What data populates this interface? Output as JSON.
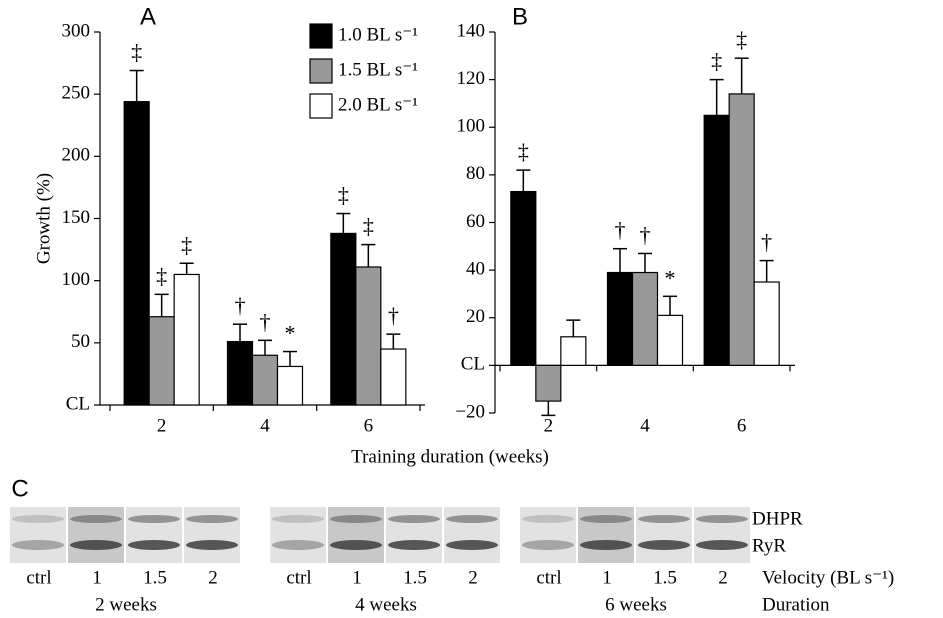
{
  "chart_data": [
    {
      "type": "bar",
      "label": "A",
      "ylabel": "Growth (%)",
      "xlabel": "Training duration (weeks)",
      "categories": [
        "2",
        "4",
        "6"
      ],
      "ylim": [
        0,
        300
      ],
      "yticks": [
        {
          "value": 0,
          "label": "CL"
        },
        50,
        100,
        150,
        200,
        250,
        300
      ],
      "legend": "upper right",
      "series": [
        {
          "name": "1.0 BL s⁻¹",
          "color": "#000000",
          "values": [
            244,
            51,
            138
          ],
          "errors": [
            25,
            14,
            16
          ],
          "markers": [
            "‡",
            "†",
            "‡"
          ]
        },
        {
          "name": "1.5 BL s⁻¹",
          "color": "#999999",
          "values": [
            71,
            40,
            111
          ],
          "errors": [
            18,
            12,
            18
          ],
          "markers": [
            "‡",
            "†",
            "‡"
          ]
        },
        {
          "name": "2.0 BL s⁻¹",
          "color": "#ffffff",
          "values": [
            105,
            31,
            45
          ],
          "errors": [
            9,
            12,
            12
          ],
          "markers": [
            "‡",
            "*",
            "†"
          ]
        }
      ]
    },
    {
      "type": "bar",
      "label": "B",
      "categories": [
        "2",
        "4",
        "6"
      ],
      "ylim": [
        -20,
        140
      ],
      "yticks": [
        {
          "value": -20,
          "label": "−20"
        },
        {
          "value": 0,
          "label": "CL"
        },
        20,
        40,
        60,
        80,
        100,
        120,
        140
      ],
      "series": [
        {
          "color": "#000000",
          "values": [
            73,
            39,
            105
          ],
          "errors": [
            9,
            10,
            15
          ],
          "markers": [
            "‡",
            "†",
            "‡"
          ]
        },
        {
          "color": "#999999",
          "values": [
            -15,
            39,
            114
          ],
          "errors": [
            6,
            8,
            15
          ],
          "markers": [
            null,
            "†",
            "‡"
          ]
        },
        {
          "color": "#ffffff",
          "values": [
            12,
            21,
            35
          ],
          "errors": [
            7,
            8,
            9
          ],
          "markers": [
            null,
            "*",
            "†"
          ]
        }
      ]
    }
  ],
  "blot": {
    "label": "C",
    "bands": [
      "DHPR",
      "RyR"
    ],
    "row_labels": [
      "Velocity (BL s⁻¹)",
      "Duration"
    ],
    "groups": [
      {
        "duration": "2 weeks",
        "lanes": [
          "ctrl",
          "1",
          "1.5",
          "2"
        ]
      },
      {
        "duration": "4 weeks",
        "lanes": [
          "ctrl",
          "1",
          "1.5",
          "2"
        ]
      },
      {
        "duration": "6 weeks",
        "lanes": [
          "ctrl",
          "1",
          "1.5",
          "2"
        ]
      }
    ]
  }
}
